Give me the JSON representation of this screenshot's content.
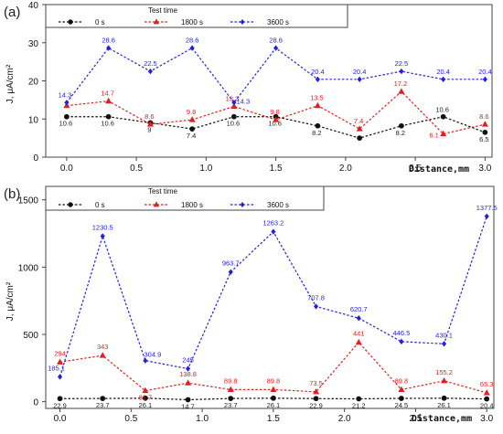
{
  "chart_data": [
    {
      "panel_label": "(a)",
      "type": "line",
      "legend_title": "Test time",
      "legend_position": "top-left",
      "xlabel": "Distance,mm",
      "ylabel": "J, μA/cm²",
      "x": [
        0,
        0.3,
        0.6,
        0.9,
        1.2,
        1.5,
        1.8,
        2.1,
        2.4,
        2.7,
        3.0
      ],
      "xlim": [
        -0.15,
        3.05
      ],
      "ylim": [
        0,
        40
      ],
      "xticks": [
        "0.0",
        "0.5",
        "1.0",
        "1.5",
        "2.0",
        "2.5",
        "3.0"
      ],
      "yticks": [
        "0",
        "10",
        "20",
        "30",
        "40"
      ],
      "grid": false,
      "series": [
        {
          "name": "0 s",
          "color": "#111111",
          "marker": "circle",
          "values": [
            10.6,
            10.6,
            9,
            7.4,
            10.6,
            10.6,
            8.2,
            5,
            8.2,
            10.6,
            6.5
          ],
          "labels": [
            "10.6",
            "10.6",
            "9",
            "7.4",
            "10.6",
            "10.6",
            "8.2",
            "",
            "8.2",
            "10.6",
            "6.5"
          ]
        },
        {
          "name": "1800 s",
          "color": "#e02020",
          "marker": "triangle",
          "values": [
            13.5,
            14.7,
            8.6,
            9.8,
            13.3,
            9.8,
            13.5,
            7.4,
            17.2,
            6.1,
            8.6
          ],
          "labels": [
            "",
            "14.7",
            "8.6",
            "9.8",
            "13.3",
            "9.8",
            "13.5",
            "7.4",
            "17.2",
            "6.1",
            "8.6"
          ]
        },
        {
          "name": "3600 s",
          "color": "#2222dd",
          "marker": "diamond",
          "values": [
            14.3,
            28.6,
            22.5,
            28.6,
            14.3,
            28.6,
            20.4,
            20.4,
            22.5,
            20.4,
            20.4
          ],
          "labels": [
            "14.3",
            "28.6",
            "22.5",
            "28.6",
            "14.3",
            "28.6",
            "20.4",
            "20.4",
            "22.5",
            "20.4",
            "20.4"
          ]
        }
      ]
    },
    {
      "panel_label": "(b)",
      "type": "line",
      "legend_title": "Test time",
      "legend_position": "top-left",
      "xlabel": "Distance,mm",
      "ylabel": "J, μA/cm²",
      "x": [
        0,
        0.3,
        0.6,
        0.9,
        1.2,
        1.5,
        1.8,
        2.1,
        2.4,
        2.7,
        3.0
      ],
      "xlim": [
        -0.1,
        3.05
      ],
      "ylim": [
        -50,
        1600
      ],
      "xticks": [
        "0.0",
        "0.5",
        "1.0",
        "1.5",
        "2.0",
        "2.5",
        "3.0"
      ],
      "yticks": [
        "0",
        "500",
        "1000",
        "1500"
      ],
      "grid": false,
      "series": [
        {
          "name": "0 s",
          "color": "#111111",
          "marker": "circle",
          "values": [
            22.9,
            23.7,
            26.1,
            14.7,
            23.7,
            26.1,
            22.9,
            21.2,
            24.5,
            26.1,
            20.4
          ],
          "labels": [
            "22.9",
            "23.7",
            "26.1",
            "14.7",
            "23.7",
            "26.1",
            "22.9",
            "21.2",
            "24.5",
            "26.1",
            "20.4"
          ]
        },
        {
          "name": "1800 s",
          "color": "#e02020",
          "marker": "triangle",
          "values": [
            294,
            343,
            81.7,
            138.8,
            89.8,
            89.8,
            73.5,
            441,
            89.8,
            155.2,
            65.3
          ],
          "labels": [
            "294",
            "343",
            "81.7",
            "138.8",
            "89.8",
            "89.8",
            "73.5",
            "441",
            "89.8",
            "155.2",
            "65.3"
          ]
        },
        {
          "name": "3600 s",
          "color": "#2222dd",
          "marker": "diamond",
          "values": [
            185.1,
            1230.5,
            304.9,
            245,
            963.7,
            1263.2,
            707.8,
            620.7,
            446.5,
            430.1,
            1377.5
          ],
          "labels": [
            "185.1",
            "1230.5",
            "304.9",
            "245",
            "963.7",
            "1263.2",
            "707.8",
            "620.7",
            "446.5",
            "430.1",
            "1377.5"
          ]
        }
      ]
    }
  ]
}
